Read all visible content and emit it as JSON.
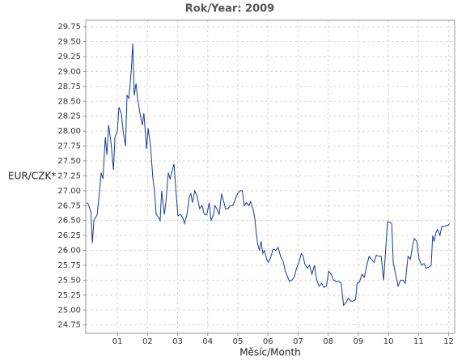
{
  "chart_data": {
    "type": "line",
    "title": "Rok/Year: 2009",
    "y_label": "EUR/CZK*",
    "x_label": "Měsíc/Month",
    "color": "#1a3a9a",
    "grid": true,
    "xlim": [
      -0.05,
      12.2
    ],
    "ylim": [
      24.61,
      29.86
    ],
    "xticks": [
      {
        "value": 1,
        "label": "01"
      },
      {
        "value": 2,
        "label": "02"
      },
      {
        "value": 3,
        "label": "03"
      },
      {
        "value": 4,
        "label": "04"
      },
      {
        "value": 5,
        "label": "05"
      },
      {
        "value": 6,
        "label": "06"
      },
      {
        "value": 7,
        "label": "07"
      },
      {
        "value": 8,
        "label": "08"
      },
      {
        "value": 9,
        "label": "09"
      },
      {
        "value": 10,
        "label": "10"
      },
      {
        "value": 11,
        "label": "11"
      },
      {
        "value": 12,
        "label": "12"
      }
    ],
    "yticks": [
      24.75,
      {
        "value": 25,
        "label": "25.00"
      },
      25.25,
      {
        "value": 25.5,
        "label": "25.50"
      },
      25.75,
      {
        "value": 26,
        "label": "26.00"
      },
      26.25,
      {
        "value": 26.5,
        "label": "26.50"
      },
      26.75,
      {
        "value": 27,
        "label": "27.00"
      },
      27.25,
      {
        "value": 27.5,
        "label": "27.50"
      },
      27.75,
      {
        "value": 28,
        "label": "28.00"
      },
      28.25,
      {
        "value": 28.5,
        "label": "28.50"
      },
      28.75,
      {
        "value": 29,
        "label": "29.00"
      },
      29.25,
      {
        "value": 29.5,
        "label": "29.50"
      },
      29.75
    ],
    "x": [
      -0.02,
      0.03,
      0.12,
      0.17,
      0.22,
      0.33,
      0.41,
      0.46,
      0.52,
      0.6,
      0.65,
      0.71,
      0.79,
      0.87,
      0.92,
      1.0,
      1.05,
      1.13,
      1.19,
      1.27,
      1.32,
      1.38,
      1.46,
      1.51,
      1.56,
      1.62,
      1.67,
      1.75,
      1.83,
      1.88,
      1.97,
      2.02,
      2.1,
      2.18,
      2.23,
      2.29,
      2.37,
      2.42,
      2.47,
      2.56,
      2.61,
      2.69,
      2.75,
      2.83,
      2.88,
      2.96,
      3.01,
      3.09,
      3.17,
      3.23,
      3.31,
      3.39,
      3.44,
      3.49,
      3.57,
      3.65,
      3.73,
      3.81,
      3.89,
      3.97,
      4.05,
      4.11,
      4.19,
      4.24,
      4.3,
      4.38,
      4.46,
      4.54,
      4.59,
      4.67,
      4.75,
      4.83,
      4.91,
      4.99,
      5.07,
      5.15,
      5.21,
      5.29,
      5.37,
      5.42,
      5.5,
      5.56,
      5.61,
      5.66,
      5.72,
      5.77,
      5.83,
      5.88,
      5.96,
      6.01,
      6.09,
      6.17,
      6.26,
      6.34,
      6.42,
      6.5,
      6.58,
      6.66,
      6.71,
      6.79,
      6.87,
      6.95,
      7.03,
      7.11,
      7.17,
      7.22,
      7.3,
      7.38,
      7.46,
      7.54,
      7.62,
      7.7,
      7.78,
      7.86,
      7.94,
      8.02,
      8.1,
      8.18,
      8.27,
      8.35,
      8.43,
      8.51,
      8.59,
      8.67,
      8.75,
      8.83,
      8.91,
      8.96,
      9.04,
      9.12,
      9.2,
      9.28,
      9.36,
      9.44,
      9.52,
      9.6,
      9.68,
      9.76,
      9.84,
      9.92,
      9.97,
      10.05,
      10.11,
      10.16,
      10.24,
      10.32,
      10.4,
      10.48,
      10.56,
      10.65,
      10.73,
      10.81,
      10.86,
      10.94,
      11.02,
      11.1,
      11.18,
      11.26,
      11.34,
      11.42,
      11.47,
      11.52,
      11.58,
      11.63,
      11.71,
      11.77,
      11.85,
      11.93,
      11.98,
      12.03
    ],
    "values": [
      26.8,
      26.78,
      26.65,
      26.12,
      26.5,
      26.6,
      27.0,
      27.3,
      27.2,
      27.9,
      27.6,
      28.1,
      27.8,
      27.35,
      27.9,
      28.0,
      28.4,
      28.3,
      28.0,
      27.75,
      28.6,
      28.55,
      29.0,
      29.47,
      28.6,
      28.8,
      28.55,
      28.3,
      28.1,
      28.3,
      27.7,
      28.05,
      27.75,
      27.2,
      27.0,
      26.6,
      26.55,
      26.5,
      27.0,
      26.6,
      26.8,
      27.3,
      27.2,
      27.35,
      27.45,
      26.9,
      26.58,
      26.6,
      26.55,
      26.45,
      26.6,
      26.9,
      26.95,
      26.8,
      27.0,
      26.9,
      26.7,
      26.75,
      26.6,
      26.6,
      26.8,
      26.5,
      26.6,
      26.75,
      26.7,
      26.6,
      26.95,
      26.8,
      26.7,
      26.7,
      26.75,
      26.75,
      26.85,
      26.95,
      27.0,
      27.0,
      26.75,
      26.8,
      26.75,
      26.82,
      26.7,
      26.55,
      26.3,
      26.1,
      26.0,
      26.15,
      25.95,
      26.0,
      25.85,
      25.8,
      25.88,
      26.02,
      26.0,
      26.05,
      25.9,
      25.82,
      25.65,
      25.55,
      25.48,
      25.5,
      25.55,
      25.7,
      25.8,
      25.95,
      25.9,
      25.78,
      25.7,
      25.75,
      25.6,
      25.75,
      25.5,
      25.4,
      25.45,
      25.38,
      25.4,
      25.65,
      25.6,
      25.5,
      25.48,
      25.48,
      25.45,
      25.08,
      25.12,
      25.2,
      25.15,
      25.15,
      25.18,
      25.45,
      25.47,
      25.6,
      25.55,
      25.75,
      25.9,
      25.85,
      25.8,
      25.92,
      25.9,
      25.9,
      25.5,
      26.1,
      26.48,
      26.47,
      26.45,
      25.8,
      25.6,
      25.4,
      25.5,
      25.5,
      25.45,
      25.9,
      25.85,
      26.1,
      26.2,
      26.15,
      25.85,
      25.75,
      25.78,
      25.7,
      25.72,
      25.75,
      26.25,
      26.15,
      26.3,
      26.35,
      26.25,
      26.4,
      26.4,
      26.42,
      26.42,
      26.45
    ]
  }
}
